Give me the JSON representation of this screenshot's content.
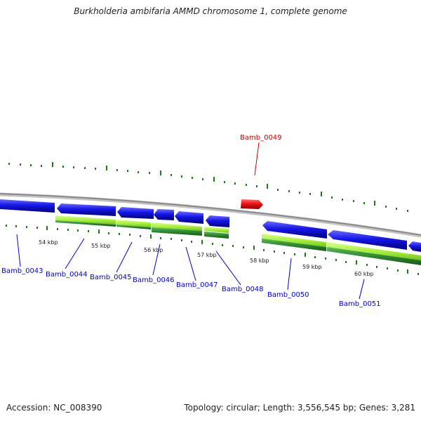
{
  "title": "Burkholderia ambifaria AMMD chromosome 1, complete genome",
  "footer": {
    "accession": "Accession: NC_008390",
    "summary": "Topology: circular; Length: 3,556,545 bp; Genes: 3,281"
  },
  "colors": {
    "forward_gene": "#1010e0",
    "highlight_gene": "#e01010",
    "cds_light": "#a8f040",
    "cds_dark": "#2e8a2e",
    "backbone": "#909090",
    "tick": "#1a7a1a",
    "label_default": "#0000cc",
    "label_highlight": "#cc0000"
  },
  "tick_labels": [
    "54 kbp",
    "55 kbp",
    "56 kbp",
    "57 kbp",
    "58 kbp",
    "59 kbp",
    "60 kbp"
  ],
  "genes": [
    {
      "label": "Bamb_0043",
      "highlight": false
    },
    {
      "label": "Bamb_0044",
      "highlight": false
    },
    {
      "label": "Bamb_0045",
      "highlight": false
    },
    {
      "label": "Bamb_0046",
      "highlight": false
    },
    {
      "label": "Bamb_0047",
      "highlight": false
    },
    {
      "label": "Bamb_0048",
      "highlight": false
    },
    {
      "label": "Bamb_0049",
      "highlight": true
    },
    {
      "label": "Bamb_0050",
      "highlight": false
    },
    {
      "label": "Bamb_0051",
      "highlight": false
    }
  ]
}
